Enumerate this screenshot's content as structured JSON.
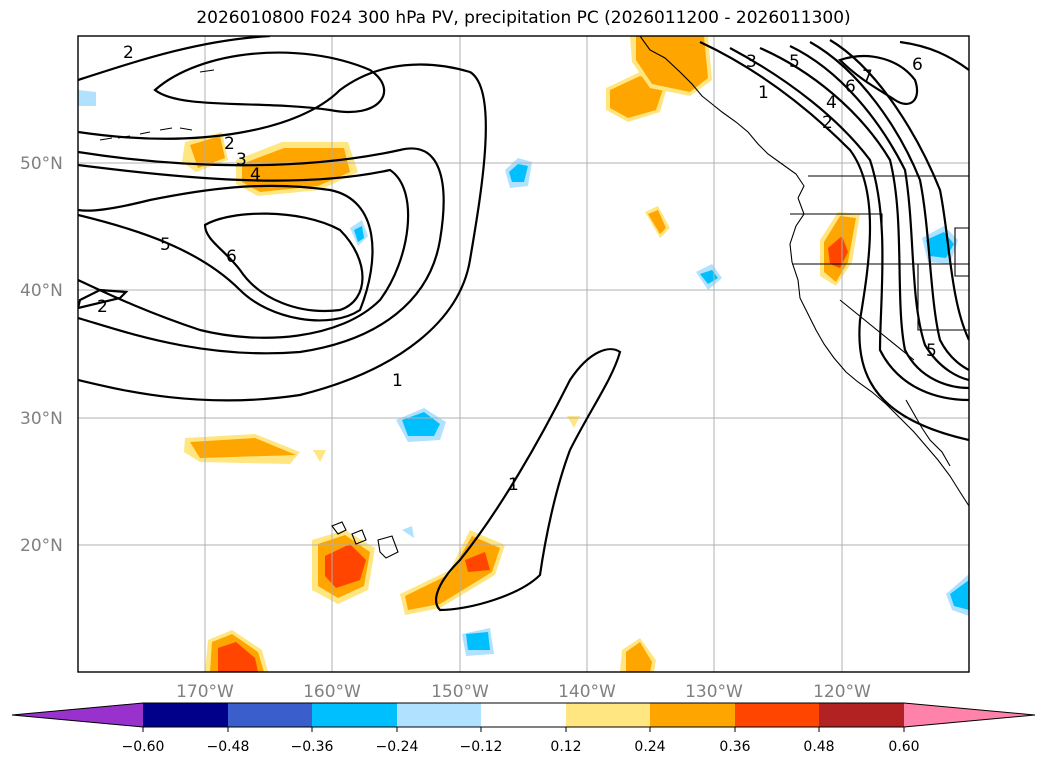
{
  "title": "2026010800 F024 300 hPa PV, precipitation PC (2026011200 - 2026011300)",
  "lat_labels": [
    "50°N",
    "40°N",
    "30°N",
    "20°N"
  ],
  "lon_labels": [
    "170°W",
    "160°W",
    "150°W",
    "140°W",
    "130°W",
    "120°W"
  ],
  "contour_labels": [
    "2",
    "2",
    "3",
    "4",
    "5",
    "6",
    "2",
    "1",
    "1",
    "3",
    "5",
    "7",
    "6",
    "1",
    "4",
    "2",
    "6",
    "5"
  ],
  "colorbar": {
    "ticks": [
      "−0.60",
      "−0.48",
      "−0.36",
      "−0.24",
      "−0.12",
      "0.12",
      "0.24",
      "0.36",
      "0.48",
      "0.60"
    ],
    "colors": [
      "#9932cc",
      "#00008b",
      "#3a5fcd",
      "#00bfff",
      "#b0e2ff",
      "#ffffff",
      "#ffe680",
      "#ffa500",
      "#ff4500",
      "#b22222",
      "#ff82ab"
    ]
  }
}
